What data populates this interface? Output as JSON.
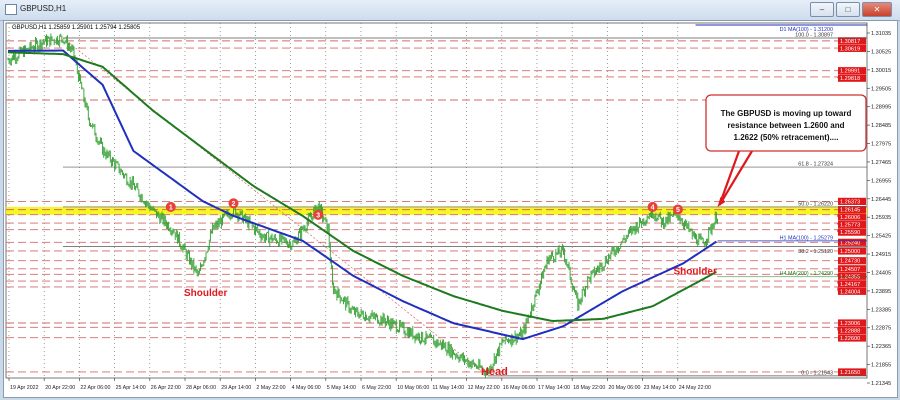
{
  "window": {
    "title": "GBPUSD,H1",
    "buttons": [
      "minimize",
      "maximize",
      "close"
    ]
  },
  "ohlc_header": "GBPUSD,H1  1.25859 1.25901 1.25794 1.25805",
  "annotation": {
    "text_lines": [
      "The GBPUSD is moving up toward",
      "resistance between 1.2600 and",
      "1.2622 (50% retracement)...."
    ]
  },
  "pattern_labels": {
    "left_shoulder": "Shoulder",
    "head": "Head",
    "right_shoulder": "Shoulder"
  },
  "touch_markers": [
    "1",
    "2",
    "3",
    "4",
    "5"
  ],
  "colors": {
    "bars": "#2e9e2e",
    "ma100": "#1f2fbf",
    "ma200": "#1d7a1d",
    "level_line": "#d46a6a",
    "tag": "#e0181b",
    "resistance_zone": "#f5f500",
    "annotation_border": "#d23030"
  },
  "chart_data": {
    "type": "line",
    "symbol": "GBPUSD",
    "timeframe": "H1",
    "x_unit": "hourly bar index",
    "x_tick_labels": [
      "19 Apr 2022",
      "20 Apr 22:00",
      "22 Apr 06:00",
      "25 Apr 14:00",
      "26 Apr 22:00",
      "28 Apr 06:00",
      "29 Apr 14:00",
      "2 May 22:00",
      "4 May 06:00",
      "5 May 14:00",
      "6 May 22:00",
      "10 May 06:00",
      "11 May 14:00",
      "12 May 22:00",
      "16 May 06:00",
      "17 May 14:00",
      "18 May 22:00",
      "20 May 06:00",
      "23 May 14:00",
      "24 May 22:00"
    ],
    "y_tick_labels": [
      "1.31035",
      "1.30525",
      "1.30015",
      "1.29505",
      "1.28995",
      "1.28485",
      "1.27975",
      "1.27465",
      "1.26955",
      "1.26445",
      "1.25935",
      "1.25425",
      "1.24915",
      "1.24405",
      "1.23895",
      "1.23385",
      "1.22875",
      "1.22365",
      "1.21855",
      "1.21345"
    ],
    "ylim": [
      1.21345,
      1.31035
    ],
    "grid": "vertical dotted",
    "series": [
      {
        "name": "",
        "kind": "price",
        "points": [
          [
            0,
            1.303
          ],
          [
            32,
            1.308
          ],
          [
            50,
            1.309
          ],
          [
            59,
            1.305
          ],
          [
            73,
            1.287
          ],
          [
            86,
            1.278
          ],
          [
            114,
            1.268
          ],
          [
            132,
            1.261
          ],
          [
            150,
            1.256
          ],
          [
            173,
            1.243
          ],
          [
            186,
            1.256
          ],
          [
            205,
            1.2615
          ],
          [
            232,
            1.254
          ],
          [
            259,
            1.252
          ],
          [
            282,
            1.2625
          ],
          [
            291,
            1.256
          ],
          [
            295,
            1.24
          ],
          [
            314,
            1.233
          ],
          [
            341,
            1.231
          ],
          [
            368,
            1.227
          ],
          [
            395,
            1.224
          ],
          [
            414,
            1.22
          ],
          [
            436,
            1.2165
          ],
          [
            450,
            1.225
          ],
          [
            468,
            1.227
          ],
          [
            491,
            1.248
          ],
          [
            505,
            1.25
          ],
          [
            518,
            1.235
          ],
          [
            527,
            1.242
          ],
          [
            545,
            1.248
          ],
          [
            568,
            1.256
          ],
          [
            586,
            1.261
          ],
          [
            595,
            1.258
          ],
          [
            609,
            1.26
          ],
          [
            623,
            1.254
          ],
          [
            632,
            1.252
          ],
          [
            645,
            1.26
          ]
        ]
      },
      {
        "name": "H1 MA(100)",
        "kind": "ma100",
        "points": [
          [
            0,
            1.3054
          ],
          [
            50,
            1.3055
          ],
          [
            86,
            1.296
          ],
          [
            114,
            1.2777
          ],
          [
            177,
            1.2638
          ],
          [
            205,
            1.2597
          ],
          [
            268,
            1.2528
          ],
          [
            314,
            1.2431
          ],
          [
            359,
            1.2361
          ],
          [
            405,
            1.23
          ],
          [
            468,
            1.2256
          ],
          [
            505,
            1.2292
          ],
          [
            559,
            1.2389
          ],
          [
            614,
            1.2466
          ],
          [
            645,
            1.2528
          ]
        ]
      },
      {
        "name": "H1 MA(200)",
        "kind": "ma200",
        "points": [
          [
            0,
            1.305
          ],
          [
            50,
            1.3045
          ],
          [
            86,
            1.301
          ],
          [
            132,
            1.2888
          ],
          [
            223,
            1.268
          ],
          [
            268,
            1.2597
          ],
          [
            314,
            1.25
          ],
          [
            359,
            1.2431
          ],
          [
            405,
            1.2375
          ],
          [
            450,
            1.2334
          ],
          [
            495,
            1.2306
          ],
          [
            541,
            1.2312
          ],
          [
            586,
            1.2347
          ],
          [
            632,
            1.2422
          ],
          [
            645,
            1.2444
          ]
        ]
      }
    ],
    "fib_levels": [
      {
        "label": "100.0 - 1.30897",
        "value": 1.30897
      },
      {
        "label": "61.8 - 1.27324",
        "value": 1.27324
      },
      {
        "label": "50.0 - 1.26220",
        "value": 1.2622
      },
      {
        "label": "38.2 - 1.25120",
        "value": 1.2512
      },
      {
        "label": "0.0 - 1.21543",
        "value": 1.21543
      }
    ],
    "ma_labels": [
      {
        "label": "H1 MA(100) - 1.25279",
        "value": 1.25279
      },
      {
        "label": "H4 MA(200) - 1.24290",
        "value": 1.2429
      },
      {
        "label": "D1 MA(100) - 1.31200",
        "value": 1.312
      }
    ],
    "resistance_zone": [
      1.26,
      1.2622
    ],
    "horizontal_levels": [
      "1.30817",
      "1.30619",
      "1.29991",
      "1.29818",
      "1.29180",
      "1.26373",
      "1.26145",
      "1.26006",
      "1.25773",
      "1.25590",
      "1.25240",
      "1.25000",
      "1.24730",
      "1.24507",
      "1.24355",
      "1.24167",
      "1.24004",
      "1.23006",
      "1.22888",
      "1.22600",
      "1.21650"
    ],
    "touch_points": [
      [
        148,
        1.2622
      ],
      [
        205,
        1.2632
      ],
      [
        282,
        1.26
      ],
      [
        586,
        1.2622
      ],
      [
        609,
        1.2615
      ]
    ]
  }
}
